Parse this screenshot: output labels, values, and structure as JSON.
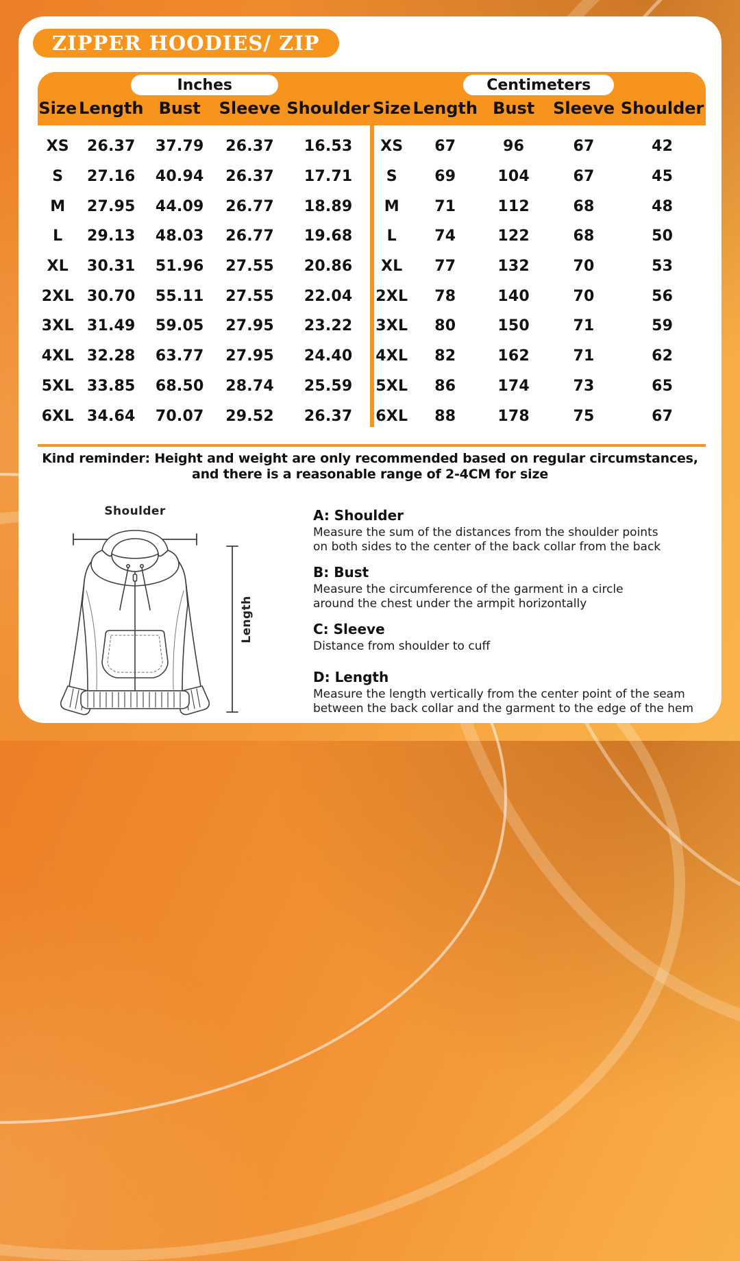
{
  "title": "ZIPPER HOODIES/ ZIP",
  "colors": {
    "accent_orange": "#F7941D",
    "card_white": "#FFFFFF",
    "text_black": "#121212"
  },
  "tables": [
    {
      "unit_label": "Inches",
      "columns": [
        "Size",
        "Length",
        "Bust",
        "Sleeve",
        "Shoulder"
      ],
      "rows": [
        [
          "XS",
          "26.37",
          "37.79",
          "26.37",
          "16.53"
        ],
        [
          "S",
          "27.16",
          "40.94",
          "26.37",
          "17.71"
        ],
        [
          "M",
          "27.95",
          "44.09",
          "26.77",
          "18.89"
        ],
        [
          "L",
          "29.13",
          "48.03",
          "26.77",
          "19.68"
        ],
        [
          "XL",
          "30.31",
          "51.96",
          "27.55",
          "20.86"
        ],
        [
          "2XL",
          "30.70",
          "55.11",
          "27.55",
          "22.04"
        ],
        [
          "3XL",
          "31.49",
          "59.05",
          "27.95",
          "23.22"
        ],
        [
          "4XL",
          "32.28",
          "63.77",
          "27.95",
          "24.40"
        ],
        [
          "5XL",
          "33.85",
          "68.50",
          "28.74",
          "25.59"
        ],
        [
          "6XL",
          "34.64",
          "70.07",
          "29.52",
          "26.37"
        ]
      ]
    },
    {
      "unit_label": "Centimeters",
      "columns": [
        "Size",
        "Length",
        "Bust",
        "Sleeve",
        "Shoulder"
      ],
      "rows": [
        [
          "XS",
          "67",
          "96",
          "67",
          "42"
        ],
        [
          "S",
          "69",
          "104",
          "67",
          "45"
        ],
        [
          "M",
          "71",
          "112",
          "68",
          "48"
        ],
        [
          "L",
          "74",
          "122",
          "68",
          "50"
        ],
        [
          "XL",
          "77",
          "132",
          "70",
          "53"
        ],
        [
          "2XL",
          "78",
          "140",
          "70",
          "56"
        ],
        [
          "3XL",
          "80",
          "150",
          "71",
          "59"
        ],
        [
          "4XL",
          "82",
          "162",
          "71",
          "62"
        ],
        [
          "5XL",
          "86",
          "174",
          "73",
          "65"
        ],
        [
          "6XL",
          "88",
          "178",
          "75",
          "67"
        ]
      ]
    }
  ],
  "reminder": {
    "lines": [
      "Kind reminder: Height and weight are only recommended based on regular circumstances,",
      "and there is a reasonable range of 2-4CM for size"
    ]
  },
  "diagram": {
    "shoulder_label": "Shoulder",
    "length_label": "Length"
  },
  "measure_guide": [
    {
      "heading": "A: Shoulder",
      "lines": [
        "Measure the sum of the distances from the shoulder points",
        "on both sides to the center of the back collar from the back"
      ]
    },
    {
      "heading": "B: Bust",
      "lines": [
        "Measure the circumference of the garment in a circle",
        "around the chest under the armpit horizontally"
      ]
    },
    {
      "heading": "C: Sleeve",
      "lines": [
        "Distance from shoulder to cuff"
      ]
    },
    {
      "heading": "D: Length",
      "lines": [
        "Measure the length vertically from the center point of the seam",
        "between the back collar and the garment to the edge of the hem"
      ]
    }
  ]
}
